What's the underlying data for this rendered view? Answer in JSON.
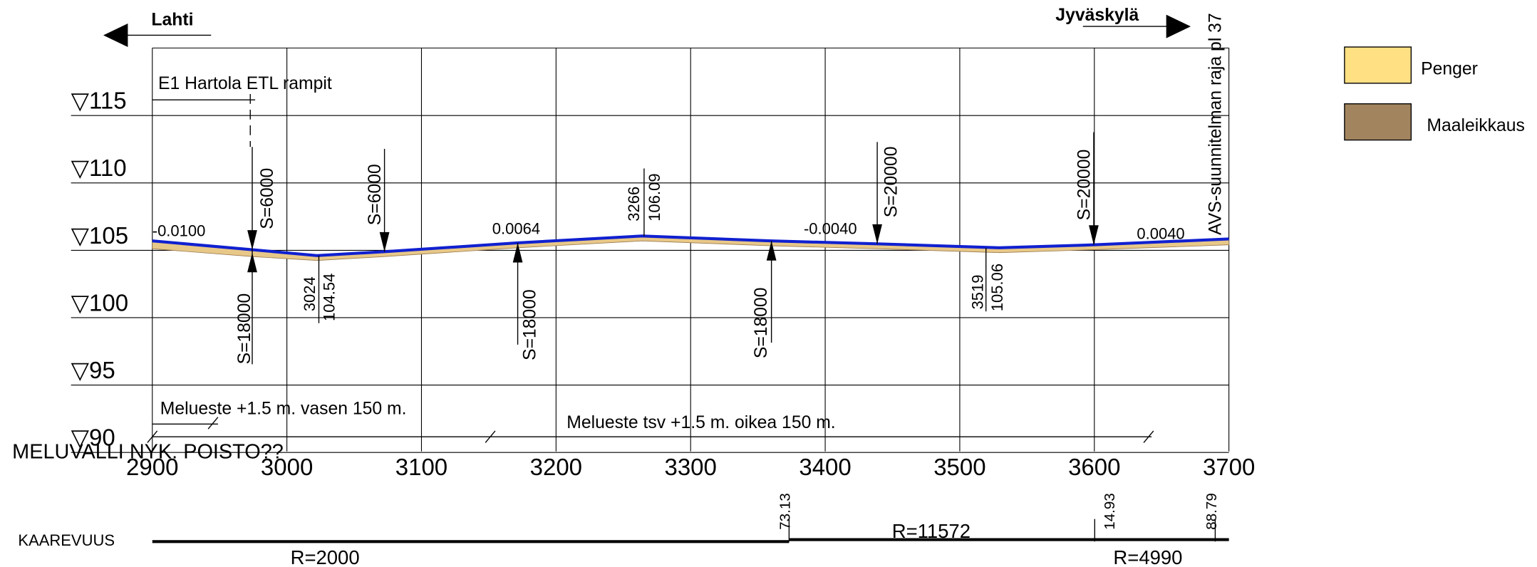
{
  "directions": {
    "left": "Lahti",
    "right": "Jyväskylä"
  },
  "boundary_label": "AVS-suunnitelman raja pl 37",
  "legend": [
    {
      "label": "Penger"
    },
    {
      "label": "Maaleikkaus"
    }
  ],
  "elevation_labels": [
    "▽115",
    "▽110",
    "▽105",
    "▽100",
    "▽95",
    "▽90"
  ],
  "station_labels": [
    "2900",
    "3000",
    "3100",
    "3200",
    "3300",
    "3400",
    "3500",
    "3600",
    "3700"
  ],
  "ramp_label": "E1 Hartola ETL rampit",
  "grades": [
    "-0.0100",
    "0.0064",
    "-0.0040",
    "0.0040"
  ],
  "vertical_curves": [
    "S=6000",
    "S=6000",
    "S=18000",
    "S=18000",
    "S=18000",
    "S=20000",
    "S=20000"
  ],
  "points": [
    {
      "station": "3024",
      "elevation": "104.54"
    },
    {
      "station": "3266",
      "elevation": "106.09"
    },
    {
      "station": "3519",
      "elevation": "105.06"
    }
  ],
  "noise_barriers": [
    "Melueste +1.5 m. vasen  150 m.",
    "Melueste tsv +1.5 m. oikea 150 m."
  ],
  "noise_wall_note": "MELUVALLI NYK. POISTO??",
  "curvature": {
    "title": "KAAREVUUS",
    "radii": [
      "R=2000",
      "R=11572",
      "R=4990"
    ],
    "lengths": [
      "73.13",
      "14.93",
      "88.79"
    ]
  }
}
